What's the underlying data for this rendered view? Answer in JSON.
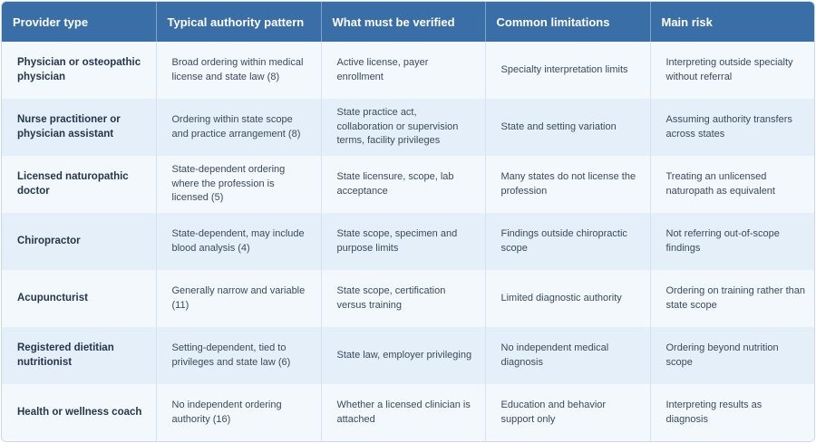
{
  "table": {
    "header": [
      "Provider type",
      "Typical authority pattern",
      "What must be verified",
      "Common limitations",
      "Main risk"
    ],
    "rows": [
      [
        "Physician or osteopathic physician",
        "Broad ordering within medical license and state law (8)",
        "Active license, payer enrollment",
        "Specialty interpretation limits",
        "Interpreting outside specialty without referral"
      ],
      [
        "Nurse practitioner or physician assistant",
        "Ordering within state scope and practice arrangement (8)",
        "State practice act, collaboration or supervision terms, facility privileges",
        "State and setting variation",
        "Assuming authority transfers across states"
      ],
      [
        "Licensed naturopathic doctor",
        "State-dependent ordering where the profession is licensed (5)",
        "State licensure, scope, lab acceptance",
        "Many states do not license the profession",
        "Treating an unlicensed naturopath as equivalent"
      ],
      [
        "Chiropractor",
        "State-dependent, may include blood analysis (4)",
        "State scope, specimen and purpose limits",
        "Findings outside chiropractic scope",
        "Not referring out-of-scope findings"
      ],
      [
        "Acupuncturist",
        "Generally narrow and variable (11)",
        "State scope, certification versus training",
        "Limited diagnostic authority",
        "Ordering on training rather than state scope"
      ],
      [
        "Registered dietitian nutritionist",
        "Setting-dependent, tied to privileges and state law (6)",
        "State law, employer privileging",
        "No independent medical diagnosis",
        "Ordering beyond nutrition scope"
      ],
      [
        "Health or wellness coach",
        "No independent ordering authority (16)",
        "Whether a licensed clinician is attached",
        "Education and behavior support only",
        "Interpreting results as diagnosis"
      ]
    ]
  }
}
